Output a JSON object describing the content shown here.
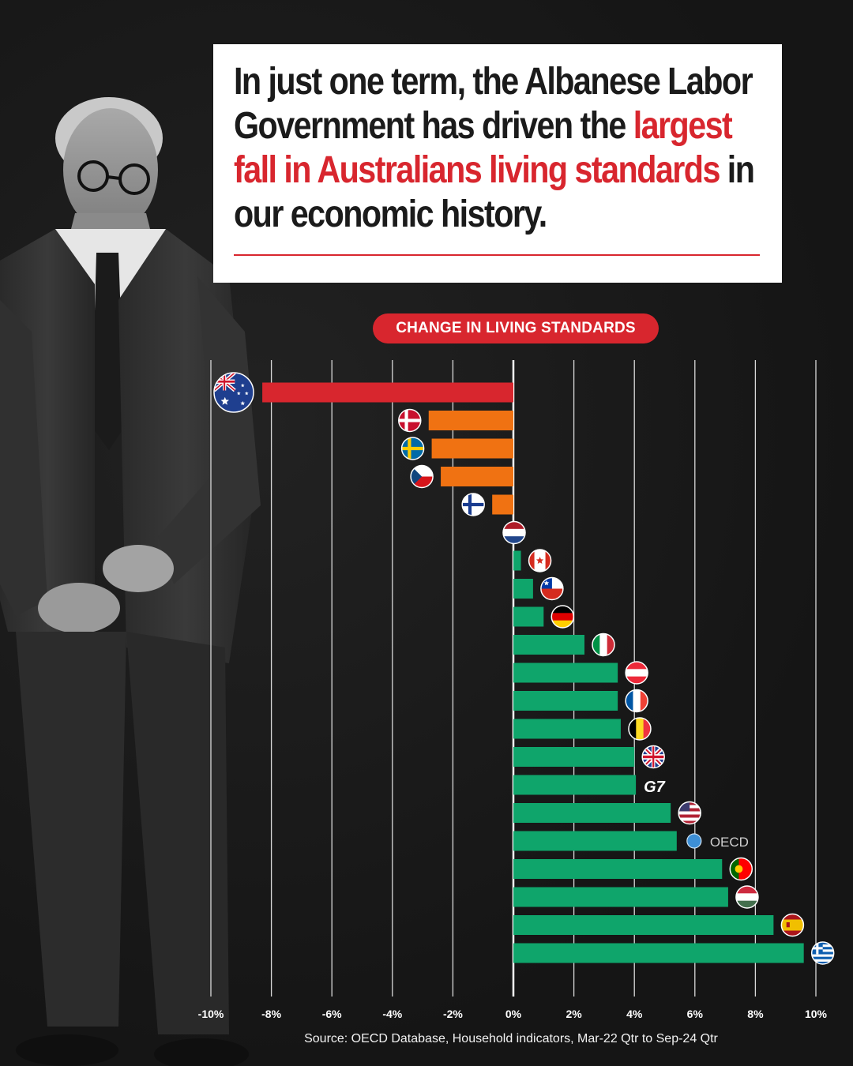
{
  "headline": {
    "part1": "In just one term, the Albanese Labor Government has driven the ",
    "highlight1": "largest fall in Australians living",
    "part2": " ",
    "highlight2": "standards",
    "part3": " in our economic history."
  },
  "colors": {
    "negative_leader": "#d8262e",
    "negative": "#f07212",
    "positive": "#0fa56b",
    "accent": "#d8262e"
  },
  "chart_data": {
    "type": "bar",
    "orientation": "horizontal",
    "title": "CHANGE IN LIVING STANDARDS",
    "xlim": [
      -10,
      10
    ],
    "x_ticks": [
      "-10%",
      "-8%",
      "-6%",
      "-4%",
      "-2%",
      "0%",
      "2%",
      "4%",
      "6%",
      "8%",
      "10%"
    ],
    "grid": true,
    "categories": [
      {
        "flag": "australia-flag",
        "value": -8.3,
        "color": "#d8262e"
      },
      {
        "flag": "denmark-flag",
        "value": -2.8,
        "color": "#f07212"
      },
      {
        "flag": "sweden-flag",
        "value": -2.7,
        "color": "#f07212"
      },
      {
        "flag": "czechia-flag",
        "value": -2.4,
        "color": "#f07212"
      },
      {
        "flag": "finland-flag",
        "value": -0.7,
        "color": "#f07212"
      },
      {
        "flag": "netherlands-flag",
        "value": 0.0,
        "color": "#0fa56b"
      },
      {
        "flag": "canada-flag",
        "value": 0.25,
        "color": "#0fa56b"
      },
      {
        "flag": "chile-flag",
        "value": 0.65,
        "color": "#0fa56b"
      },
      {
        "flag": "germany-flag",
        "value": 1.0,
        "color": "#0fa56b"
      },
      {
        "flag": "italy-flag",
        "value": 2.35,
        "color": "#0fa56b"
      },
      {
        "flag": "austria-flag",
        "value": 3.45,
        "color": "#0fa56b"
      },
      {
        "flag": "france-flag",
        "value": 3.45,
        "color": "#0fa56b"
      },
      {
        "flag": "belgium-flag",
        "value": 3.55,
        "color": "#0fa56b"
      },
      {
        "flag": "uk-flag",
        "value": 4.0,
        "color": "#0fa56b"
      },
      {
        "flag": "g7-label",
        "label": "G7",
        "value": 4.05,
        "color": "#0fa56b"
      },
      {
        "flag": "usa-flag",
        "value": 5.2,
        "color": "#0fa56b"
      },
      {
        "flag": "oecd-logo",
        "label": "OECD",
        "value": 5.4,
        "color": "#0fa56b"
      },
      {
        "flag": "portugal-flag",
        "value": 6.9,
        "color": "#0fa56b"
      },
      {
        "flag": "hungary-flag",
        "value": 7.1,
        "color": "#0fa56b"
      },
      {
        "flag": "spain-flag",
        "value": 8.6,
        "color": "#0fa56b"
      },
      {
        "flag": "greece-flag",
        "value": 9.6,
        "color": "#0fa56b"
      }
    ]
  },
  "source": "Source: OECD Database, Household indicators, Mar-22 Qtr to Sep-24 Qtr"
}
